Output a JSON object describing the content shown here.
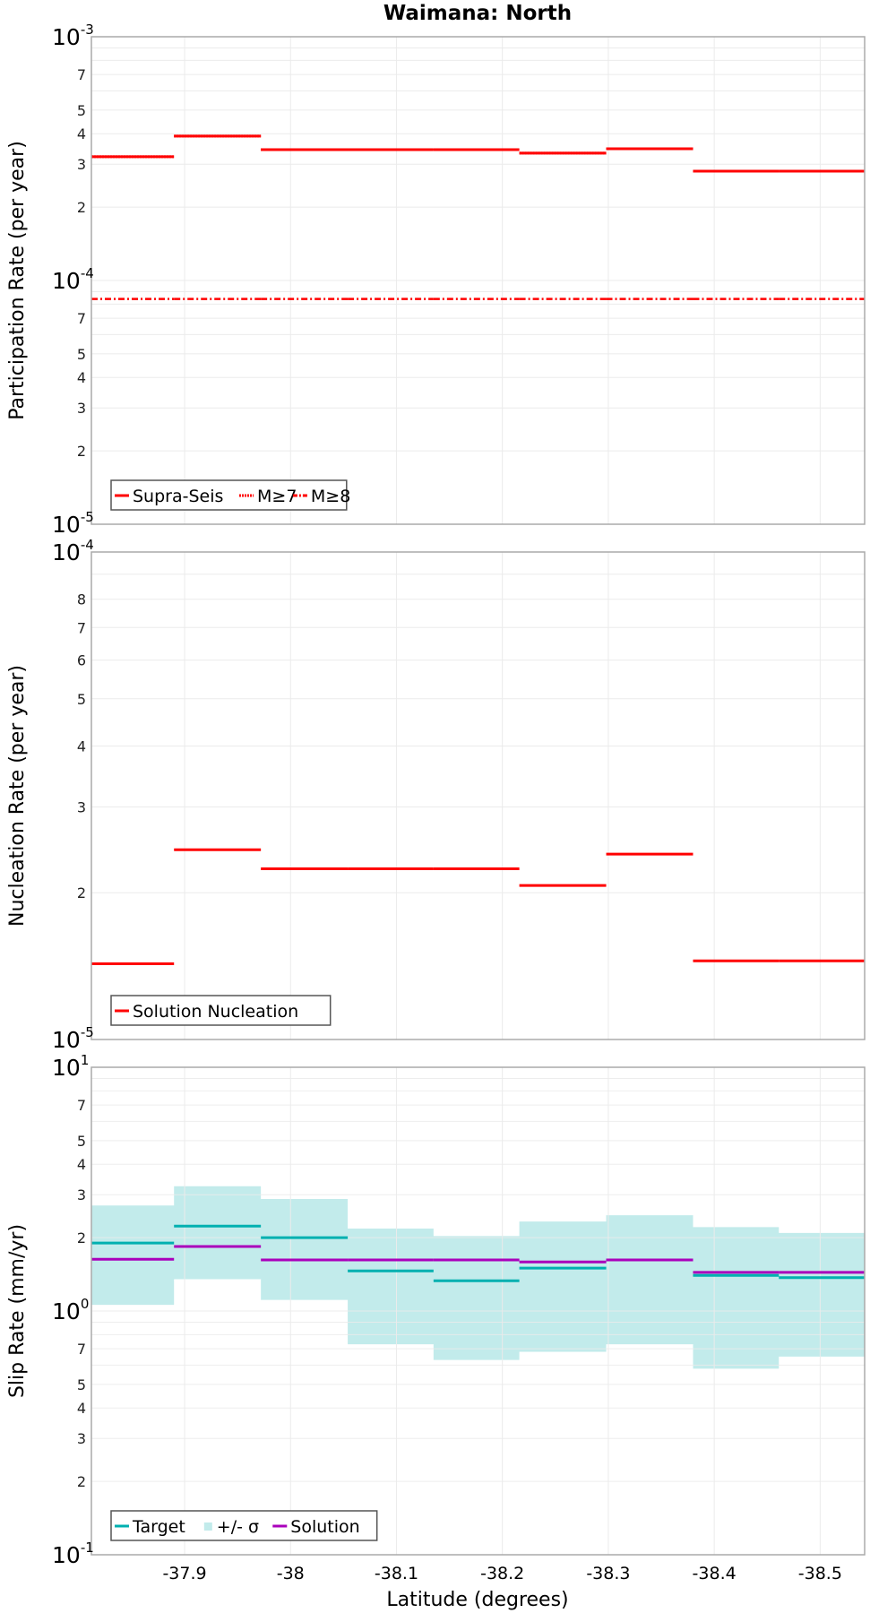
{
  "figure": {
    "title": "Waimana: North",
    "xlabel": "Latitude (degrees)",
    "x_ticks": [
      "-37.9",
      "-38",
      "-38.1",
      "-38.2",
      "-38.3",
      "-38.4",
      "-38.5"
    ]
  },
  "panels": [
    {
      "ylabel": "Participation Rate (per year)",
      "y_major": [
        {
          "base": "10",
          "exp": "-3"
        },
        {
          "base": "10",
          "exp": "-4"
        },
        {
          "base": "10",
          "exp": "-5"
        }
      ],
      "y_minor_labels": [
        "7",
        "5",
        "4",
        "3",
        "2",
        "7",
        "5",
        "4",
        "3",
        "2"
      ],
      "legend": [
        "Supra-Seis",
        "M≥7",
        "M≥8"
      ]
    },
    {
      "ylabel": "Nucleation Rate (per year)",
      "y_major": [
        {
          "base": "10",
          "exp": "-4"
        },
        {
          "base": "10",
          "exp": "-5"
        }
      ],
      "y_minor_labels": [
        "8",
        "7",
        "6",
        "5",
        "4",
        "3",
        "2"
      ],
      "legend": [
        "Solution Nucleation"
      ]
    },
    {
      "ylabel": "Slip Rate (mm/yr)",
      "y_major": [
        {
          "base": "10",
          "exp": "1"
        },
        {
          "base": "10",
          "exp": "0"
        },
        {
          "base": "10",
          "exp": "-1"
        }
      ],
      "y_minor_labels": [
        "7",
        "5",
        "4",
        "3",
        "2",
        "7",
        "5",
        "4",
        "3",
        "2"
      ],
      "legend": [
        "Target",
        "+/- σ",
        "Solution"
      ]
    }
  ],
  "colors": {
    "supra": "#ff0000",
    "target": "#00b0b0",
    "sigma": "#c2ebeb",
    "solution": "#aa00bb",
    "grid": "#ebebeb",
    "axis": "#aaaaaa"
  },
  "chart_data": [
    {
      "type": "line",
      "title": "Waimana: North",
      "xlabel": "Latitude (degrees)",
      "ylabel": "Participation Rate (per year)",
      "yscale": "log",
      "ylim": [
        1e-05,
        0.001
      ],
      "xlim": [
        -37.812,
        -38.542
      ],
      "x_ticks": [
        -37.9,
        -38.0,
        -38.1,
        -38.2,
        -38.3,
        -38.4,
        -38.5
      ],
      "bin_edges": [
        -37.812,
        -37.89,
        -37.972,
        -38.054,
        -38.135,
        -38.216,
        -38.298,
        -38.38,
        -38.461,
        -38.542
      ],
      "series": [
        {
          "name": "Supra-Seis",
          "style": "solid",
          "values": [
            0.000322,
            0.000391,
            0.000344,
            0.000344,
            0.000344,
            0.000333,
            0.000347,
            0.000281,
            0.000281
          ]
        },
        {
          "name": "M≥7",
          "style": "dotted",
          "values": [
            0.000322,
            0.000391,
            0.000344,
            0.000344,
            0.000344,
            0.000333,
            0.000347,
            0.000281,
            0.000281
          ]
        },
        {
          "name": "M≥8",
          "style": "dash-dot",
          "values": [
            8.4e-05,
            8.4e-05,
            8.4e-05,
            8.4e-05,
            8.4e-05,
            8.4e-05,
            8.4e-05,
            8.4e-05,
            8.4e-05
          ]
        }
      ],
      "legend_position": "lower left",
      "grid": true
    },
    {
      "type": "line",
      "ylabel": "Nucleation Rate (per year)",
      "yscale": "log",
      "ylim": [
        1e-05,
        0.0001
      ],
      "xlim": [
        -37.812,
        -38.542
      ],
      "bin_edges": [
        -37.812,
        -37.89,
        -37.972,
        -38.054,
        -38.135,
        -38.216,
        -38.298,
        -38.38,
        -38.461,
        -38.542
      ],
      "series": [
        {
          "name": "Solution Nucleation",
          "style": "solid",
          "values": [
            1.43e-05,
            2.45e-05,
            2.24e-05,
            2.24e-05,
            2.24e-05,
            2.07e-05,
            2.4e-05,
            1.45e-05,
            1.45e-05
          ]
        }
      ],
      "legend_position": "lower left",
      "grid": true
    },
    {
      "type": "line",
      "xlabel": "Latitude (degrees)",
      "ylabel": "Slip Rate (mm/yr)",
      "yscale": "log",
      "ylim": [
        0.1,
        10
      ],
      "xlim": [
        -37.812,
        -38.542
      ],
      "x_ticks": [
        -37.9,
        -38.0,
        -38.1,
        -38.2,
        -38.3,
        -38.4,
        -38.5
      ],
      "bin_edges": [
        -37.812,
        -37.89,
        -37.972,
        -38.054,
        -38.135,
        -38.216,
        -38.298,
        -38.38,
        -38.461,
        -38.542
      ],
      "series": [
        {
          "name": "Target",
          "style": "solid",
          "values": [
            1.9,
            2.23,
            2.0,
            1.46,
            1.33,
            1.5,
            1.62,
            1.4,
            1.37
          ]
        },
        {
          "name": "+/- σ",
          "style": "band",
          "upper": [
            2.71,
            3.25,
            2.88,
            2.18,
            2.03,
            2.33,
            2.47,
            2.21,
            2.09
          ],
          "lower": [
            1.06,
            1.35,
            1.11,
            0.73,
            0.63,
            0.68,
            0.73,
            0.58,
            0.65
          ]
        },
        {
          "name": "Solution",
          "style": "solid",
          "values": [
            1.63,
            1.84,
            1.62,
            1.62,
            1.62,
            1.59,
            1.62,
            1.44,
            1.44
          ]
        }
      ],
      "legend_position": "lower left",
      "grid": true
    }
  ]
}
